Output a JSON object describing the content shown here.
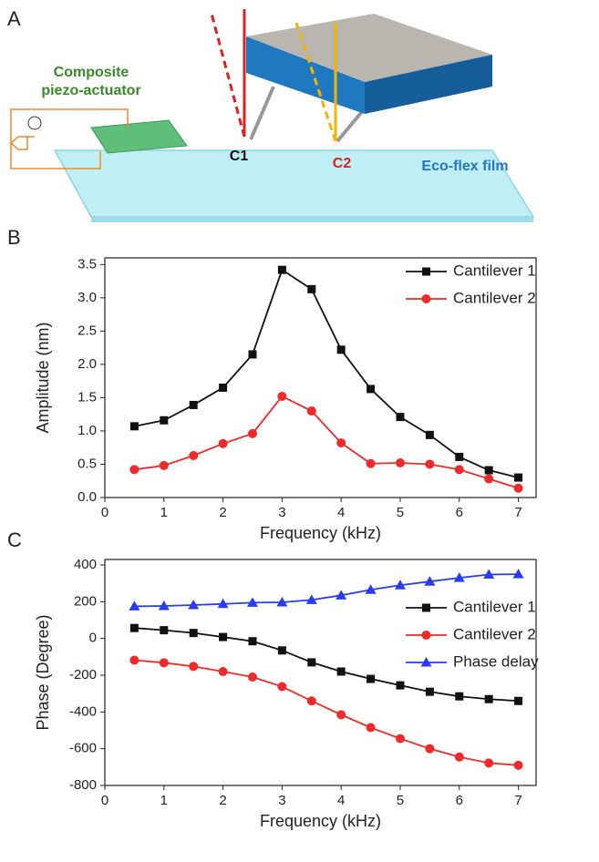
{
  "panels": [
    "A",
    "B",
    "C"
  ],
  "diagram": {
    "actuator_label": [
      "Composite",
      "piezo-actuator"
    ],
    "c1": "C1",
    "c2": "C2",
    "film_label": "Eco-flex film"
  },
  "chart_data": [
    {
      "type": "line",
      "xlabel": "Frequency (kHz)",
      "ylabel": "Amplitude (nm)",
      "x": [
        0.5,
        1,
        1.5,
        2,
        2.5,
        3,
        3.5,
        4,
        4.5,
        5,
        5.5,
        6,
        6.5,
        7
      ],
      "series": [
        {
          "name": "Cantilever 1",
          "color": "#111111",
          "marker": "square",
          "values": [
            1.07,
            1.16,
            1.39,
            1.65,
            2.15,
            3.42,
            3.13,
            2.22,
            1.63,
            1.21,
            0.94,
            0.61,
            0.41,
            0.3
          ]
        },
        {
          "name": "Cantilever 2",
          "color": "#ee2a2a",
          "marker": "circle",
          "values": [
            0.42,
            0.48,
            0.63,
            0.81,
            0.96,
            1.52,
            1.3,
            0.82,
            0.51,
            0.52,
            0.5,
            0.42,
            0.28,
            0.14
          ]
        }
      ],
      "xlim": [
        0,
        7.3
      ],
      "xticks": [
        0,
        1,
        2,
        3,
        4,
        5,
        6,
        7
      ],
      "ylim": [
        0,
        3.6
      ],
      "yticks": [
        {
          "value": 0,
          "label": "0.0"
        },
        {
          "value": 0.5,
          "label": "0.5"
        },
        {
          "value": 1,
          "label": "1.0"
        },
        {
          "value": 1.5,
          "label": "1.5"
        },
        {
          "value": 2,
          "label": "2.0"
        },
        {
          "value": 2.5,
          "label": "2.5"
        },
        {
          "value": 3,
          "label": "3.0"
        },
        {
          "value": 3.5,
          "label": "3.5"
        }
      ],
      "grid": false,
      "legend": "upper right"
    },
    {
      "type": "line",
      "xlabel": "Frequency (kHz)",
      "ylabel": "Phase (Degree)",
      "x": [
        0.5,
        1,
        1.5,
        2,
        2.5,
        3,
        3.5,
        4,
        4.5,
        5,
        5.5,
        6,
        6.5,
        7
      ],
      "series": [
        {
          "name": "Cantilever 1",
          "color": "#111111",
          "marker": "square",
          "values": [
            57,
            45,
            30,
            8,
            -15,
            -65,
            -130,
            -180,
            -220,
            -255,
            -290,
            -315,
            -330,
            -340
          ]
        },
        {
          "name": "Cantilever 2",
          "color": "#ee2a2a",
          "marker": "circle",
          "values": [
            -118,
            -132,
            -152,
            -180,
            -210,
            -262,
            -340,
            -415,
            -485,
            -545,
            -600,
            -645,
            -678,
            -690
          ]
        },
        {
          "name": "Phase delay",
          "color": "#2a3cf0",
          "marker": "triangle",
          "values": [
            175,
            177,
            182,
            188,
            195,
            197,
            210,
            235,
            265,
            290,
            310,
            330,
            348,
            350
          ]
        }
      ],
      "xlim": [
        0,
        7.3
      ],
      "xticks": [
        0,
        1,
        2,
        3,
        4,
        5,
        6,
        7
      ],
      "ylim": [
        -800,
        430
      ],
      "yticks": [
        -800,
        -600,
        -400,
        -200,
        0,
        200,
        400
      ],
      "grid": false,
      "legend": "upper right"
    }
  ]
}
